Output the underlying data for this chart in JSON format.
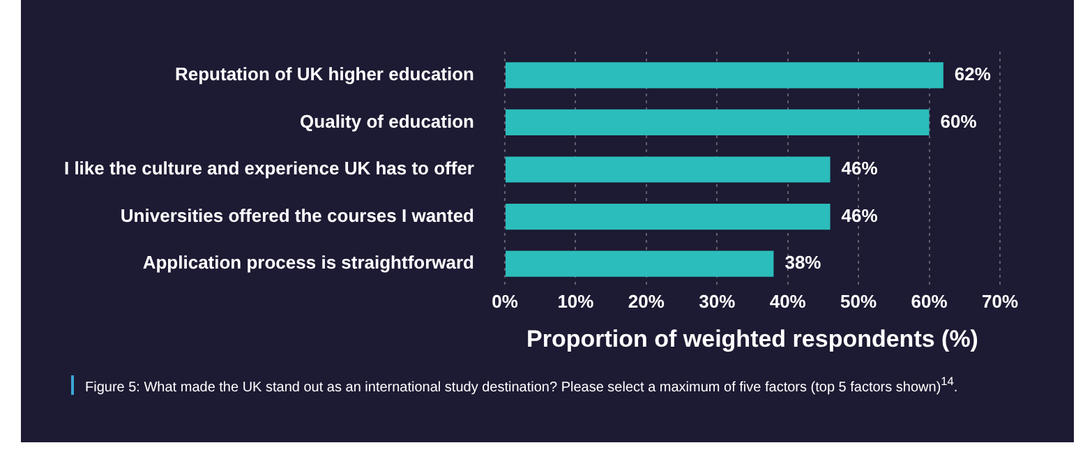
{
  "chart_data": {
    "type": "bar",
    "orientation": "horizontal",
    "xlabel": "Proportion of weighted respondents (%)",
    "categories": [
      "Reputation of UK higher education",
      "Quality of education",
      "I like the culture and experience UK has to offer",
      "Universities offered the courses I wanted",
      "Application process is straightforward"
    ],
    "values": [
      62,
      60,
      46,
      46,
      38
    ],
    "color": "#2bbdbb",
    "value_labels": [
      "62%",
      "60%",
      "46%",
      "46%",
      "38%"
    ],
    "xlim": [
      0,
      70
    ],
    "xticks": [
      {
        "value": 0,
        "label": "0%"
      },
      {
        "value": 10,
        "label": "10%"
      },
      {
        "value": 20,
        "label": "20%"
      },
      {
        "value": 30,
        "label": "30%"
      },
      {
        "value": 40,
        "label": "40%"
      },
      {
        "value": 50,
        "label": "50%"
      },
      {
        "value": 60,
        "label": "60%"
      },
      {
        "value": 70,
        "label": "70%"
      }
    ],
    "grid": "x",
    "legend": false,
    "annotations": [
      "Figure 5: What made the UK stand out as an international study destination? Please select a maximum of five factors (top 5 factors shown)$^{14}$."
    ]
  }
}
